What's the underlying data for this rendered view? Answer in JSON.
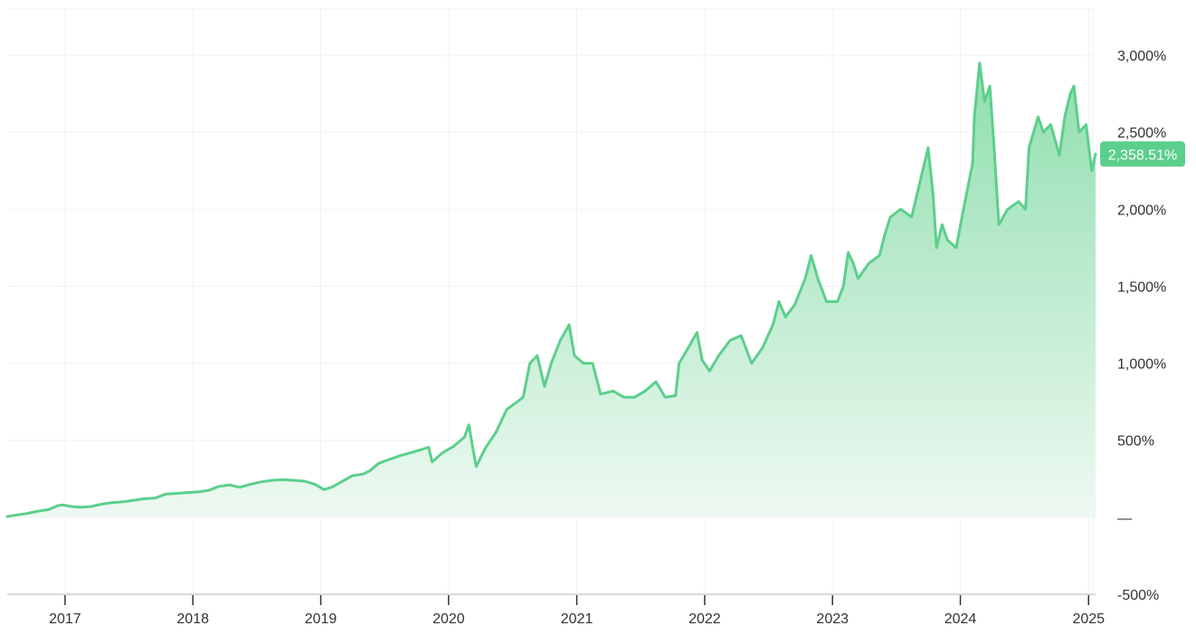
{
  "chart_data": {
    "type": "area",
    "title": "",
    "xlabel": "",
    "ylabel": "",
    "ylim": [
      -500,
      3300
    ],
    "xlim": [
      "2016-07-20",
      "2025-01-21"
    ],
    "grid": true,
    "legend": "none",
    "colors": {
      "line": "#5ccf8c",
      "fill_top": "#8fdeae",
      "fill_bottom": "#eef9f2",
      "badge": "#5ccf8c"
    },
    "y_ticks": [
      {
        "value": 3000,
        "label": "3,000%"
      },
      {
        "value": 2500,
        "label": "2,500%"
      },
      {
        "value": 2000,
        "label": "2,000%"
      },
      {
        "value": 1500,
        "label": "1,500%"
      },
      {
        "value": 1000,
        "label": "1,000%"
      },
      {
        "value": 500,
        "label": "500%"
      },
      {
        "value": 0,
        "label": "—"
      },
      {
        "value": -500,
        "label": "-500%"
      }
    ],
    "x_ticks": [
      {
        "date": "2017-01-01",
        "label": "2017"
      },
      {
        "date": "2018-01-01",
        "label": "2018"
      },
      {
        "date": "2019-01-01",
        "label": "2019"
      },
      {
        "date": "2020-01-01",
        "label": "2020"
      },
      {
        "date": "2021-01-01",
        "label": "2021"
      },
      {
        "date": "2022-01-01",
        "label": "2022"
      },
      {
        "date": "2023-01-01",
        "label": "2023"
      },
      {
        "date": "2024-01-01",
        "label": "2024"
      },
      {
        "date": "2025-01-01",
        "label": "2025"
      }
    ],
    "last_value_label": "2,358.51%",
    "series": [
      {
        "values": [
          [
            "2016-07-20",
            5
          ],
          [
            "2016-08-15",
            15
          ],
          [
            "2016-09-15",
            25
          ],
          [
            "2016-10-15",
            40
          ],
          [
            "2016-11-15",
            50
          ],
          [
            "2016-12-10",
            75
          ],
          [
            "2016-12-25",
            80
          ],
          [
            "2017-01-20",
            70
          ],
          [
            "2017-02-15",
            65
          ],
          [
            "2017-03-15",
            70
          ],
          [
            "2017-04-15",
            85
          ],
          [
            "2017-05-15",
            95
          ],
          [
            "2017-06-15",
            100
          ],
          [
            "2017-07-15",
            110
          ],
          [
            "2017-08-15",
            120
          ],
          [
            "2017-09-15",
            125
          ],
          [
            "2017-10-15",
            150
          ],
          [
            "2017-11-15",
            155
          ],
          [
            "2017-12-15",
            160
          ],
          [
            "2018-01-15",
            165
          ],
          [
            "2018-02-15",
            175
          ],
          [
            "2018-03-15",
            200
          ],
          [
            "2018-04-15",
            210
          ],
          [
            "2018-05-15",
            195
          ],
          [
            "2018-06-15",
            215
          ],
          [
            "2018-07-15",
            230
          ],
          [
            "2018-08-15",
            240
          ],
          [
            "2018-09-15",
            245
          ],
          [
            "2018-10-15",
            240
          ],
          [
            "2018-11-15",
            235
          ],
          [
            "2018-12-15",
            215
          ],
          [
            "2019-01-10",
            180
          ],
          [
            "2019-02-01",
            195
          ],
          [
            "2019-03-01",
            230
          ],
          [
            "2019-04-01",
            270
          ],
          [
            "2019-05-01",
            280
          ],
          [
            "2019-05-20",
            300
          ],
          [
            "2019-06-15",
            350
          ],
          [
            "2019-07-15",
            375
          ],
          [
            "2019-08-15",
            400
          ],
          [
            "2019-09-15",
            420
          ],
          [
            "2019-10-15",
            440
          ],
          [
            "2019-11-05",
            455
          ],
          [
            "2019-11-15",
            360
          ],
          [
            "2019-12-15",
            420
          ],
          [
            "2020-01-15",
            460
          ],
          [
            "2020-02-15",
            520
          ],
          [
            "2020-02-28",
            600
          ],
          [
            "2020-03-10",
            450
          ],
          [
            "2020-03-20",
            330
          ],
          [
            "2020-04-15",
            450
          ],
          [
            "2020-05-15",
            550
          ],
          [
            "2020-06-15",
            700
          ],
          [
            "2020-07-15",
            750
          ],
          [
            "2020-08-01",
            780
          ],
          [
            "2020-08-20",
            1000
          ],
          [
            "2020-09-10",
            1050
          ],
          [
            "2020-10-01",
            850
          ],
          [
            "2020-10-20",
            1000
          ],
          [
            "2020-11-15",
            1150
          ],
          [
            "2020-12-10",
            1250
          ],
          [
            "2020-12-25",
            1050
          ],
          [
            "2021-01-20",
            1000
          ],
          [
            "2021-02-15",
            1000
          ],
          [
            "2021-03-10",
            800
          ],
          [
            "2021-04-15",
            820
          ],
          [
            "2021-05-15",
            780
          ],
          [
            "2021-06-15",
            780
          ],
          [
            "2021-07-15",
            820
          ],
          [
            "2021-08-15",
            880
          ],
          [
            "2021-09-10",
            780
          ],
          [
            "2021-10-10",
            790
          ],
          [
            "2021-10-20",
            1000
          ],
          [
            "2021-11-15",
            1100
          ],
          [
            "2021-12-10",
            1200
          ],
          [
            "2021-12-25",
            1020
          ],
          [
            "2022-01-15",
            950
          ],
          [
            "2022-02-10",
            1050
          ],
          [
            "2022-03-15",
            1150
          ],
          [
            "2022-04-15",
            1180
          ],
          [
            "2022-05-15",
            1000
          ],
          [
            "2022-06-15",
            1100
          ],
          [
            "2022-07-15",
            1250
          ],
          [
            "2022-08-01",
            1400
          ],
          [
            "2022-08-20",
            1300
          ],
          [
            "2022-09-15",
            1380
          ],
          [
            "2022-10-15",
            1550
          ],
          [
            "2022-11-01",
            1700
          ],
          [
            "2022-11-20",
            1550
          ],
          [
            "2022-12-15",
            1400
          ],
          [
            "2023-01-15",
            1400
          ],
          [
            "2023-02-01",
            1500
          ],
          [
            "2023-02-15",
            1720
          ],
          [
            "2023-03-01",
            1650
          ],
          [
            "2023-03-15",
            1550
          ],
          [
            "2023-04-15",
            1650
          ],
          [
            "2023-05-15",
            1700
          ],
          [
            "2023-06-01",
            1850
          ],
          [
            "2023-06-15",
            1950
          ],
          [
            "2023-07-15",
            2000
          ],
          [
            "2023-08-15",
            1950
          ],
          [
            "2023-09-10",
            2200
          ],
          [
            "2023-10-01",
            2400
          ],
          [
            "2023-10-15",
            2100
          ],
          [
            "2023-10-25",
            1750
          ],
          [
            "2023-11-10",
            1900
          ],
          [
            "2023-11-25",
            1800
          ],
          [
            "2023-12-20",
            1750
          ],
          [
            "2024-01-10",
            2000
          ],
          [
            "2024-02-05",
            2300
          ],
          [
            "2024-02-10",
            2600
          ],
          [
            "2024-02-25",
            2950
          ],
          [
            "2024-03-10",
            2700
          ],
          [
            "2024-03-25",
            2800
          ],
          [
            "2024-04-05",
            2450
          ],
          [
            "2024-04-20",
            1900
          ],
          [
            "2024-05-15",
            2000
          ],
          [
            "2024-06-15",
            2050
          ],
          [
            "2024-07-05",
            2000
          ],
          [
            "2024-07-15",
            2400
          ],
          [
            "2024-08-10",
            2600
          ],
          [
            "2024-08-25",
            2500
          ],
          [
            "2024-09-15",
            2550
          ],
          [
            "2024-10-10",
            2350
          ],
          [
            "2024-10-25",
            2600
          ],
          [
            "2024-11-10",
            2750
          ],
          [
            "2024-11-20",
            2800
          ],
          [
            "2024-12-05",
            2500
          ],
          [
            "2024-12-25",
            2550
          ],
          [
            "2025-01-10",
            2250
          ],
          [
            "2025-01-21",
            2358.51
          ]
        ]
      }
    ]
  }
}
